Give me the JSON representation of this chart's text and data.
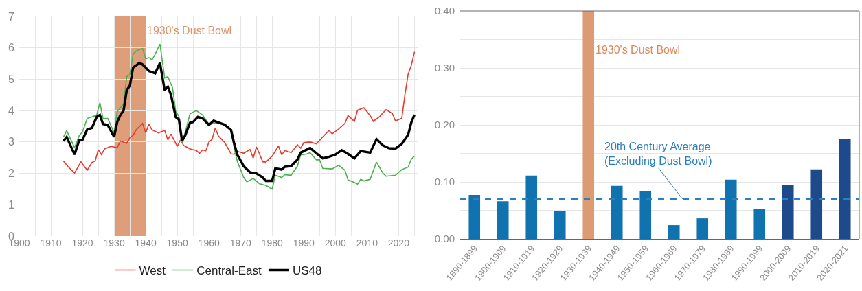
{
  "chart_data": [
    {
      "type": "line",
      "xlim": [
        1900,
        2026
      ],
      "xticks": [
        1900,
        {
          "value": 1905,
          "label": null
        },
        1910,
        {
          "value": 1915,
          "label": null
        },
        1920,
        {
          "value": 1925,
          "label": null
        },
        1930,
        {
          "value": 1935,
          "label": null
        },
        1940,
        {
          "value": 1945,
          "label": null
        },
        1950,
        {
          "value": 1955,
          "label": null
        },
        1960,
        {
          "value": 1965,
          "label": null
        },
        1970,
        {
          "value": 1975,
          "label": null
        },
        1980,
        {
          "value": 1985,
          "label": null
        },
        1990,
        {
          "value": 1995,
          "label": null
        },
        2000,
        {
          "value": 2005,
          "label": null
        },
        2010,
        {
          "value": 2015,
          "label": null
        },
        2020,
        {
          "value": 2025,
          "label": null
        }
      ],
      "ylim": [
        0,
        7
      ],
      "yticks": [
        0,
        1,
        2,
        3,
        4,
        5,
        6,
        7
      ],
      "grid": true,
      "legend": "bottom",
      "marker": "none",
      "line_style": "solid",
      "bands": [
        {
          "axis": "x",
          "from": 1930,
          "to": 1940,
          "label": "1930's Dust Bowl",
          "color": "#d9936a"
        }
      ],
      "series": [
        {
          "name": "West",
          "color": "#e8392c",
          "x": [
            1914,
            1915.5,
            1917.5,
            1919.5,
            1921.5,
            1923,
            1924,
            1925,
            1926,
            1927,
            1929,
            1931,
            1932,
            1934,
            1935,
            1936,
            1937,
            1939,
            1940,
            1941,
            1942,
            1944,
            1946,
            1947,
            1948,
            1950,
            1951,
            1952,
            1954,
            1956,
            1957,
            1958,
            1959,
            1960,
            1961,
            1962,
            1963,
            1965,
            1967,
            1968,
            1969,
            1971,
            1973,
            1974,
            1975,
            1976,
            1977,
            1978,
            1980,
            1982,
            1983,
            1984,
            1986,
            1988,
            1989,
            1990,
            1992,
            1994,
            1996,
            1998,
            1999,
            2001,
            2003,
            2004,
            2006,
            2007,
            2009,
            2011,
            2012,
            2014,
            2016,
            2018,
            2019,
            2021,
            2022,
            2023,
            2024,
            2025
          ],
          "values": [
            2.39,
            2.21,
            2.01,
            2.37,
            2.1,
            2.35,
            2.39,
            2.75,
            2.6,
            2.78,
            2.86,
            2.82,
            3.03,
            2.96,
            3.14,
            3.21,
            3.39,
            3.59,
            3.29,
            3.57,
            3.39,
            3.29,
            3.37,
            3.07,
            3.25,
            2.86,
            3.07,
            2.89,
            2.78,
            2.73,
            2.64,
            2.75,
            2.72,
            3.0,
            3.09,
            3.44,
            3.19,
            2.98,
            2.62,
            2.61,
            2.7,
            2.64,
            2.76,
            2.49,
            2.84,
            2.62,
            2.37,
            2.36,
            2.55,
            2.87,
            2.59,
            2.73,
            2.66,
            2.91,
            2.8,
            2.98,
            3.0,
            2.94,
            3.16,
            3.37,
            3.26,
            3.41,
            3.59,
            3.84,
            3.66,
            4.01,
            4.09,
            3.84,
            3.66,
            3.81,
            4.03,
            3.91,
            3.67,
            3.76,
            4.51,
            5.16,
            5.44,
            5.87
          ]
        },
        {
          "name": "Central-East",
          "color": "#4caf50",
          "x": [
            1914,
            1915,
            1917.5,
            1919,
            1920,
            1921.5,
            1923,
            1924.5,
            1925.5,
            1926.5,
            1928,
            1930,
            1931,
            1933,
            1934,
            1935,
            1936,
            1937,
            1939,
            1940,
            1941,
            1942,
            1943,
            1944.5,
            1946,
            1947,
            1948.5,
            1949.5,
            1950.5,
            1951.5,
            1953,
            1954,
            1956,
            1958,
            1960,
            1963,
            1965,
            1967,
            1968,
            1969,
            1971,
            1972,
            1974,
            1976,
            1978,
            1980,
            1981,
            1983,
            1984,
            1986,
            1988,
            1989,
            1991,
            1992,
            1994,
            1995,
            1996,
            1999,
            2001,
            2003,
            2004,
            2006,
            2007,
            2008,
            2009,
            2011,
            2012,
            2013,
            2015,
            2016,
            2019,
            2021,
            2023,
            2024,
            2025
          ],
          "values": [
            3.16,
            3.36,
            2.82,
            3.21,
            3.32,
            3.75,
            3.8,
            3.86,
            4.25,
            3.75,
            3.75,
            3.29,
            3.97,
            4.22,
            5.08,
            5.15,
            5.8,
            5.9,
            5.98,
            5.65,
            5.69,
            5.62,
            5.8,
            6.12,
            5.04,
            5.08,
            4.72,
            3.97,
            3.82,
            2.96,
            3.5,
            3.9,
            4.0,
            3.86,
            3.56,
            3.62,
            3.53,
            3.37,
            2.8,
            2.37,
            1.87,
            1.73,
            1.84,
            1.67,
            1.62,
            1.5,
            1.94,
            1.87,
            1.96,
            1.94,
            2.23,
            2.59,
            2.62,
            2.66,
            2.43,
            2.43,
            2.16,
            2.14,
            2.26,
            2.1,
            1.79,
            1.71,
            1.66,
            1.81,
            1.76,
            1.81,
            2.09,
            2.36,
            2.01,
            1.91,
            1.94,
            2.12,
            2.2,
            2.45,
            2.55
          ]
        },
        {
          "name": "US48",
          "color": "#000000",
          "x": [
            1914,
            1915,
            1917.5,
            1919,
            1920,
            1921.5,
            1923,
            1924.5,
            1925.5,
            1926.5,
            1928,
            1930,
            1931,
            1932,
            1933,
            1934,
            1935,
            1936,
            1937,
            1938,
            1939,
            1940,
            1941,
            1943,
            1944.5,
            1946,
            1947,
            1948,
            1949.5,
            1950.5,
            1951.5,
            1952.5,
            1954,
            1955,
            1956.5,
            1958,
            1960,
            1961.5,
            1963,
            1965,
            1967,
            1968,
            1969,
            1971,
            1973,
            1975,
            1977,
            1978,
            1980,
            1981,
            1983,
            1984,
            1986,
            1988,
            1989,
            1991,
            1992,
            1994,
            1996,
            1998,
            2000,
            2002,
            2004,
            2006,
            2008,
            2011,
            2013,
            2015,
            2017,
            2019,
            2021,
            2023,
            2024,
            2025
          ],
          "values": [
            3.03,
            3.16,
            2.6,
            3.07,
            3.07,
            3.4,
            3.45,
            3.8,
            3.86,
            3.57,
            3.54,
            3.16,
            3.64,
            3.86,
            4.0,
            4.65,
            4.8,
            5.37,
            5.44,
            5.52,
            5.47,
            5.37,
            5.26,
            5.19,
            5.52,
            4.65,
            4.76,
            4.5,
            3.79,
            3.72,
            3.03,
            3.21,
            3.61,
            3.64,
            3.8,
            3.75,
            3.54,
            3.68,
            3.62,
            3.55,
            3.38,
            2.94,
            2.59,
            2.23,
            2.03,
            2.0,
            1.87,
            1.76,
            1.76,
            2.16,
            2.12,
            2.21,
            2.23,
            2.44,
            2.66,
            2.76,
            2.81,
            2.64,
            2.48,
            2.53,
            2.6,
            2.74,
            2.62,
            2.48,
            2.71,
            2.66,
            3.09,
            2.89,
            2.8,
            2.79,
            2.94,
            3.23,
            3.62,
            3.87
          ]
        }
      ]
    },
    {
      "type": "bar",
      "categories": [
        "1890-1899",
        "1900-1909",
        "1910-1919",
        "1920-1929",
        "1930-1939",
        "1940-1949",
        "1950-1959",
        "1960-1969",
        "1970-1979",
        "1980-1989",
        "1990-1999",
        "2000-2009",
        "2010-2019",
        "2020-2021"
      ],
      "values": [
        0.077,
        0.066,
        0.111,
        0.049,
        0.4,
        0.093,
        0.083,
        0.024,
        0.036,
        0.104,
        0.053,
        0.095,
        0.122,
        0.175
      ],
      "colors": [
        "#1172b0",
        "#1172b0",
        "#1172b0",
        "#1172b0",
        "#dd9b74",
        "#1172b0",
        "#1172b0",
        "#1172b0",
        "#1172b0",
        "#1172b0",
        "#1172b0",
        "#1d4a8a",
        "#1d4a8a",
        "#1d4a8a"
      ],
      "ylim": [
        0,
        0.4
      ],
      "yticks": [
        {
          "value": 0,
          "label": "0.00"
        },
        {
          "value": 0.05,
          "label": null
        },
        {
          "value": 0.1,
          "label": "0.10"
        },
        {
          "value": 0.15,
          "label": null
        },
        {
          "value": 0.2,
          "label": "0.20"
        },
        {
          "value": 0.25,
          "label": null
        },
        {
          "value": 0.3,
          "label": "0.30"
        },
        {
          "value": 0.35,
          "label": null
        },
        {
          "value": 0.4,
          "label": "0.40"
        }
      ],
      "grid": "y",
      "legend": false,
      "annotations": [
        "1930's Dust Bowl"
      ],
      "ref_lines": [
        {
          "axis": "y",
          "value": 0.07,
          "label": "20th Century Average\n(Excluding Dust Bowl)",
          "color": "#2a7fc0",
          "line_style": "dashed"
        }
      ]
    }
  ]
}
